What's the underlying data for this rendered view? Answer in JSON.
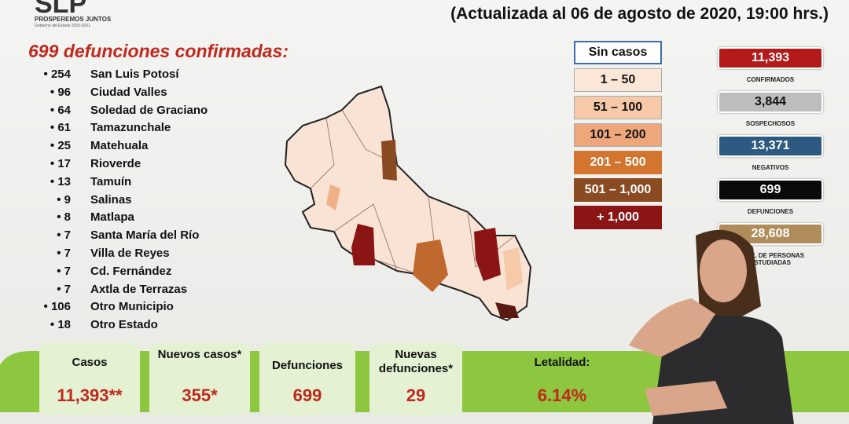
{
  "header": {
    "logo_text": "SLP",
    "logo_slogan": "PROSPEREMOS JUNTOS",
    "logo_sub": "Gobierno del Estado 2015-2021",
    "update": "(Actualizada al 06 de agosto de 2020, 19:00 hrs.)"
  },
  "deaths": {
    "title": "699 defunciones confirmadas:",
    "rows": [
      [
        254,
        "San Luis Potosí"
      ],
      [
        96,
        "Ciudad Valles"
      ],
      [
        64,
        "Soledad de Graciano"
      ],
      [
        61,
        "Tamazunchale"
      ],
      [
        25,
        "Matehuala"
      ],
      [
        17,
        "Rioverde"
      ],
      [
        13,
        "Tamuín"
      ],
      [
        9,
        "Salinas"
      ],
      [
        8,
        "Matlapa"
      ],
      [
        7,
        "Santa María del Río"
      ],
      [
        7,
        "Villa de Reyes"
      ],
      [
        7,
        "Cd. Fernández"
      ],
      [
        7,
        "Axtla de Terrazas"
      ],
      [
        106,
        "Otro Municipio"
      ],
      [
        18,
        "Otro Estado"
      ]
    ]
  },
  "legend": [
    "Sin casos",
    "1 – 50",
    "51 – 100",
    "101 – 200",
    "201 – 500",
    "501 – 1,000",
    "+ 1,000"
  ],
  "stats": [
    {
      "value": "11,393",
      "label": "CONFIRMADOS"
    },
    {
      "value": "3,844",
      "label": "SOSPECHOSOS"
    },
    {
      "value": "13,371",
      "label": "NEGATIVOS"
    },
    {
      "value": "699",
      "label": "DEFUNCIONES"
    },
    {
      "value": "28,608",
      "label": "TOTAL DE PERSONAS ESTUDIADAS"
    }
  ],
  "summary": [
    {
      "label": "Casos",
      "value": "11,393**"
    },
    {
      "label": "Nuevos casos*",
      "value": "355*"
    },
    {
      "label": "Defunciones",
      "value": "699"
    },
    {
      "label": "Nuevas defunciones*",
      "value": "29"
    },
    {
      "label": "Letalidad:",
      "value": "6.14%"
    }
  ]
}
